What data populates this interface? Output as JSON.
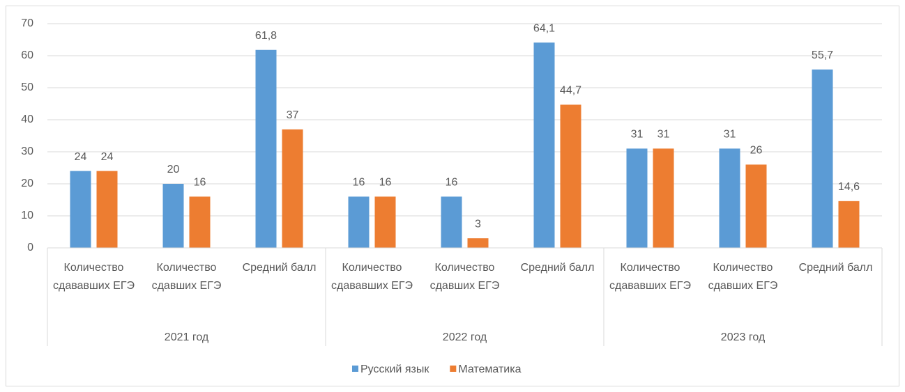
{
  "chart_data": {
    "type": "bar",
    "categories": [
      "Количество сдававших ЕГЭ",
      "Количество сдавших ЕГЭ",
      "Средний балл",
      "Количество сдававших ЕГЭ",
      "Количество сдавших ЕГЭ",
      "Средний балл",
      "Количество сдававших ЕГЭ",
      "Количество сдавших ЕГЭ",
      "Средний балл"
    ],
    "category_groups": [
      "2021 год",
      "2022 год",
      "2023 год"
    ],
    "series": [
      {
        "name": "Русский язык",
        "color": "#5b9bd5",
        "values": [
          24,
          20,
          61.8,
          16,
          16,
          64.1,
          31,
          31,
          55.7
        ],
        "value_labels": [
          "24",
          "20",
          "61,8",
          "16",
          "16",
          "64,1",
          "31",
          "31",
          "55,7"
        ]
      },
      {
        "name": "Математика",
        "color": "#ed7d31",
        "values": [
          24,
          16,
          37,
          16,
          3,
          44.7,
          31,
          26,
          14.6
        ],
        "value_labels": [
          "24",
          "16",
          "37",
          "16",
          "3",
          "44,7",
          "31",
          "26",
          "14,6"
        ]
      }
    ],
    "ylim": [
      0,
      70
    ],
    "yticks": [
      0,
      10,
      20,
      30,
      40,
      50,
      60,
      70
    ],
    "grid": true,
    "legend": "bottom"
  }
}
